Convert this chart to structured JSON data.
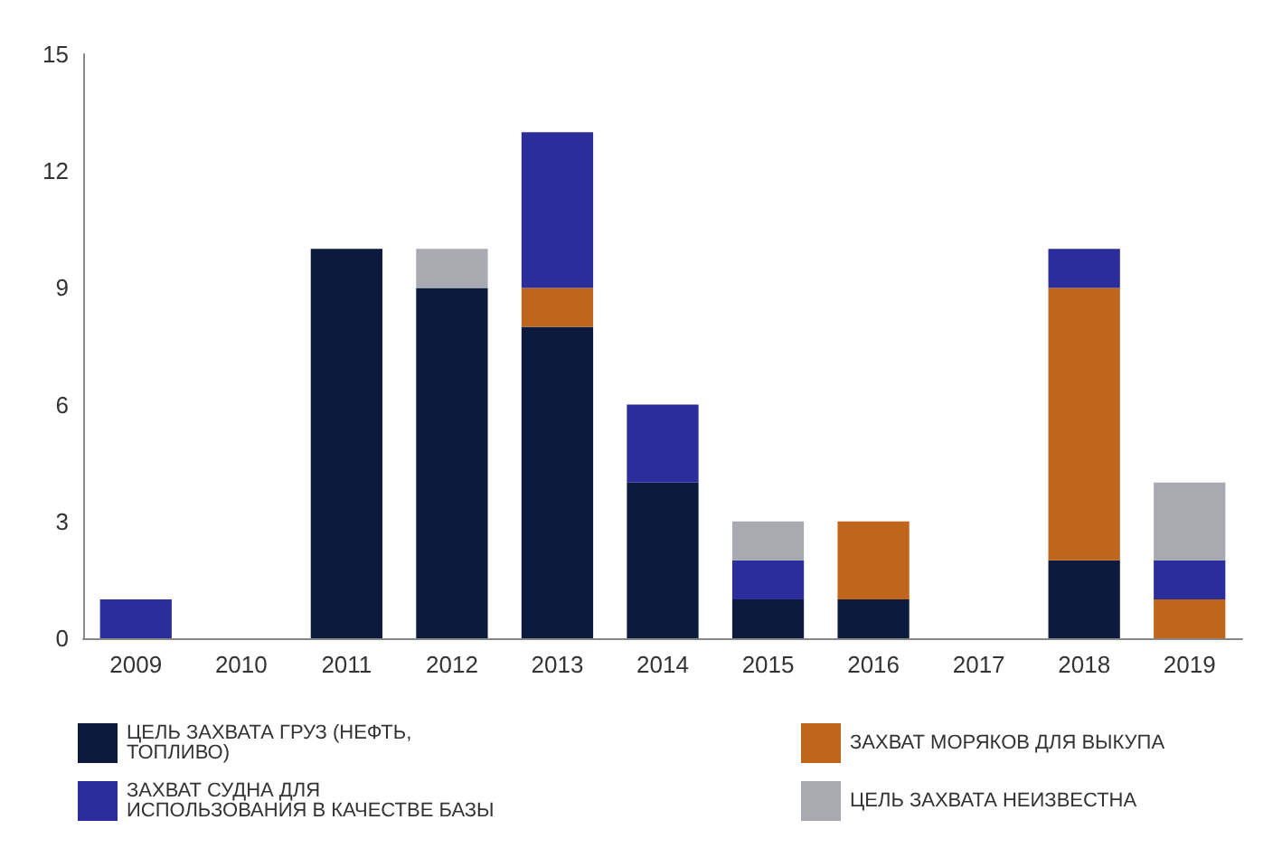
{
  "chart_data": {
    "type": "bar",
    "stacked": true,
    "categories": [
      "2009",
      "2010",
      "2011",
      "2012",
      "2013",
      "2014",
      "2015",
      "2016",
      "2017",
      "2018",
      "2019"
    ],
    "series": [
      {
        "name": "ЦЕЛЬ ЗАХВАТА ГРУЗ (НЕФТЬ, ТОПЛИВО)",
        "color": "#0b1a3d",
        "values": [
          0,
          0,
          10,
          9,
          8,
          4,
          1,
          1,
          0,
          2,
          0
        ]
      },
      {
        "name": "ЗАХВАТ МОРЯКОВ ДЛЯ ВЫКУПА",
        "color": "#c0661c",
        "values": [
          0,
          0,
          0,
          0,
          1,
          0,
          0,
          2,
          0,
          7,
          1
        ]
      },
      {
        "name": "ЗАХВАТ СУДНА ДЛЯ ИСПОЛЬЗОВАНИЯ В КАЧЕСТВЕ БАЗЫ",
        "color": "#2b2e9a",
        "values": [
          1,
          0,
          0,
          0,
          4,
          2,
          1,
          0,
          0,
          1,
          1
        ]
      },
      {
        "name": "ЦЕЛЬ ЗАХВАТА НЕИЗВЕСТНА",
        "color": "#a9a9b0",
        "values": [
          0,
          0,
          0,
          1,
          0,
          0,
          1,
          0,
          0,
          0,
          2
        ]
      }
    ],
    "ylim": [
      0,
      15
    ],
    "yticks": [
      0,
      3,
      6,
      9,
      12,
      15
    ],
    "grid": false,
    "legend": "bottom"
  }
}
